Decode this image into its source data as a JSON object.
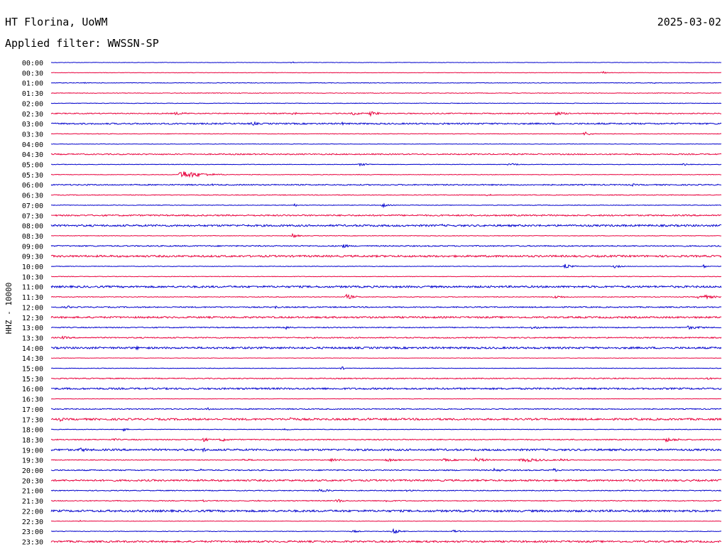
{
  "header": {
    "station": "HT Florina, UoWM",
    "date": "2025-03-02",
    "filter": "Applied filter: WWSSN-SP",
    "channel_label": "HHZ - 10000"
  },
  "colors": {
    "line_a": "#0000cc",
    "line_b": "#e8003c",
    "text": "#000000"
  },
  "chart_data": {
    "type": "line",
    "title": "",
    "xlabel": "",
    "ylabel": "HHZ - 10000",
    "x_range_minutes": [
      0,
      30
    ],
    "series": [
      {
        "label": "00:00",
        "noise": 0.3,
        "events": [
          {
            "t": 10.8,
            "a": 1.5,
            "d": 0.1
          }
        ]
      },
      {
        "label": "00:30",
        "noise": 0.3,
        "events": [
          {
            "t": 24.7,
            "a": 2.0,
            "d": 0.25
          },
          {
            "t": 26.0,
            "a": 1.0,
            "d": 0.05
          }
        ]
      },
      {
        "label": "01:00",
        "noise": 0.4,
        "events": [
          {
            "t": 1.5,
            "a": 1.5,
            "d": 0.05
          },
          {
            "t": 27.0,
            "a": 1.2,
            "d": 0.05
          }
        ]
      },
      {
        "label": "01:30",
        "noise": 0.4,
        "events": [
          {
            "t": 8.5,
            "a": 1.3,
            "d": 0.05
          },
          {
            "t": 10.3,
            "a": 1.3,
            "d": 0.05
          },
          {
            "t": 28.5,
            "a": 1.0,
            "d": 0.05
          }
        ]
      },
      {
        "label": "02:00",
        "noise": 0.4,
        "events": []
      },
      {
        "label": "02:30",
        "noise": 0.7,
        "events": [
          {
            "t": 5.5,
            "a": 2.0,
            "d": 1.5
          },
          {
            "t": 10.8,
            "a": 2.5,
            "d": 0.4
          },
          {
            "t": 12.0,
            "a": 2.0,
            "d": 0.3
          },
          {
            "t": 13.5,
            "a": 2.5,
            "d": 0.8
          },
          {
            "t": 14.3,
            "a": 3.5,
            "d": 0.6
          },
          {
            "t": 17.0,
            "a": 1.5,
            "d": 0.6
          },
          {
            "t": 22.5,
            "a": 2.5,
            "d": 1.2
          }
        ]
      },
      {
        "label": "03:00",
        "noise": 1.0,
        "events": [
          {
            "t": 9.0,
            "a": 3.5,
            "d": 0.4
          },
          {
            "t": 13.0,
            "a": 2.0,
            "d": 0.8
          },
          {
            "t": 17.5,
            "a": 1.5,
            "d": 0.8
          },
          {
            "t": 24.5,
            "a": 1.5,
            "d": 1.2
          }
        ]
      },
      {
        "label": "03:30",
        "noise": 0.4,
        "events": [
          {
            "t": 23.9,
            "a": 3.5,
            "d": 0.4
          }
        ]
      },
      {
        "label": "04:00",
        "noise": 0.3,
        "events": []
      },
      {
        "label": "04:30",
        "noise": 0.8,
        "events": []
      },
      {
        "label": "05:00",
        "noise": 0.4,
        "events": [
          {
            "t": 13.8,
            "a": 2.0,
            "d": 0.8
          },
          {
            "t": 20.5,
            "a": 2.0,
            "d": 0.8
          },
          {
            "t": 28.3,
            "a": 2.0,
            "d": 0.4
          }
        ]
      },
      {
        "label": "05:30",
        "noise": 0.4,
        "events": [
          {
            "t": 5.8,
            "a": 6.0,
            "d": 1.5
          }
        ]
      },
      {
        "label": "06:00",
        "noise": 0.8,
        "events": [
          {
            "t": 1.5,
            "a": 1.5,
            "d": 0.5
          },
          {
            "t": 7.2,
            "a": 1.5,
            "d": 0.5
          },
          {
            "t": 26.0,
            "a": 2.0,
            "d": 0.4
          }
        ]
      },
      {
        "label": "06:30",
        "noise": 0.5,
        "events": [
          {
            "t": 19.5,
            "a": 1.5,
            "d": 0.6
          }
        ]
      },
      {
        "label": "07:00",
        "noise": 0.4,
        "events": [
          {
            "t": 10.9,
            "a": 2.0,
            "d": 0.3
          },
          {
            "t": 14.8,
            "a": 3.5,
            "d": 0.4
          }
        ]
      },
      {
        "label": "07:30",
        "noise": 1.0,
        "events": []
      },
      {
        "label": "08:00",
        "noise": 1.3,
        "events": [
          {
            "t": 17.5,
            "a": 2.0,
            "d": 0.3
          }
        ]
      },
      {
        "label": "08:30",
        "noise": 0.4,
        "events": [
          {
            "t": 10.8,
            "a": 3.5,
            "d": 0.4
          }
        ]
      },
      {
        "label": "09:00",
        "noise": 0.8,
        "events": [
          {
            "t": 13.0,
            "a": 3.5,
            "d": 0.5
          }
        ]
      },
      {
        "label": "09:30",
        "noise": 1.3,
        "events": []
      },
      {
        "label": "10:00",
        "noise": 0.4,
        "events": [
          {
            "t": 23.0,
            "a": 3.5,
            "d": 0.5
          },
          {
            "t": 25.2,
            "a": 2.5,
            "d": 0.5
          },
          {
            "t": 29.2,
            "a": 2.5,
            "d": 0.3
          }
        ]
      },
      {
        "label": "10:30",
        "noise": 0.4,
        "events": []
      },
      {
        "label": "11:00",
        "noise": 1.3,
        "events": [
          {
            "t": 13.2,
            "a": 2.0,
            "d": 0.3
          }
        ]
      },
      {
        "label": "11:30",
        "noise": 0.5,
        "events": [
          {
            "t": 13.2,
            "a": 4.0,
            "d": 0.6
          },
          {
            "t": 22.5,
            "a": 2.5,
            "d": 0.9
          },
          {
            "t": 29.0,
            "a": 4.0,
            "d": 1.0
          }
        ]
      },
      {
        "label": "12:00",
        "noise": 0.8,
        "events": [
          {
            "t": 0.7,
            "a": 2.5,
            "d": 0.5
          },
          {
            "t": 10.0,
            "a": 2.5,
            "d": 0.4
          }
        ]
      },
      {
        "label": "12:30",
        "noise": 1.2,
        "events": []
      },
      {
        "label": "13:00",
        "noise": 0.7,
        "events": [
          {
            "t": 10.5,
            "a": 3.0,
            "d": 0.6
          },
          {
            "t": 21.5,
            "a": 2.0,
            "d": 1.4
          },
          {
            "t": 28.5,
            "a": 2.5,
            "d": 1.4
          }
        ]
      },
      {
        "label": "13:30",
        "noise": 0.8,
        "events": [
          {
            "t": 0.5,
            "a": 2.0,
            "d": 1.0
          },
          {
            "t": 18.5,
            "a": 1.5,
            "d": 0.8
          }
        ]
      },
      {
        "label": "14:00",
        "noise": 1.3,
        "events": [
          {
            "t": 3.8,
            "a": 2.5,
            "d": 0.6
          },
          {
            "t": 16.0,
            "a": 2.0,
            "d": 0.3
          }
        ]
      },
      {
        "label": "14:30",
        "noise": 0.3,
        "events": []
      },
      {
        "label": "15:00",
        "noise": 0.4,
        "events": [
          {
            "t": 13.0,
            "a": 2.5,
            "d": 0.3
          }
        ]
      },
      {
        "label": "15:30",
        "noise": 0.7,
        "events": [
          {
            "t": 24.5,
            "a": 2.0,
            "d": 0.5
          },
          {
            "t": 29.3,
            "a": 2.0,
            "d": 0.6
          }
        ]
      },
      {
        "label": "16:00",
        "noise": 1.2,
        "events": []
      },
      {
        "label": "16:30",
        "noise": 0.3,
        "events": []
      },
      {
        "label": "17:00",
        "noise": 0.7,
        "events": [
          {
            "t": 7.0,
            "a": 2.0,
            "d": 0.5
          },
          {
            "t": 23.5,
            "a": 1.5,
            "d": 0.5
          }
        ]
      },
      {
        "label": "17:30",
        "noise": 1.3,
        "events": [
          {
            "t": 0.4,
            "a": 3.0,
            "d": 0.4
          },
          {
            "t": 10.7,
            "a": 3.5,
            "d": 0.6
          },
          {
            "t": 14.2,
            "a": 2.0,
            "d": 0.3
          }
        ]
      },
      {
        "label": "18:00",
        "noise": 0.4,
        "events": [
          {
            "t": 3.2,
            "a": 3.0,
            "d": 0.3
          },
          {
            "t": 10.5,
            "a": 2.5,
            "d": 0.3
          }
        ]
      },
      {
        "label": "18:30",
        "noise": 0.7,
        "events": [
          {
            "t": 2.8,
            "a": 2.0,
            "d": 0.5
          },
          {
            "t": 6.8,
            "a": 3.0,
            "d": 0.5
          },
          {
            "t": 7.6,
            "a": 3.0,
            "d": 0.6
          },
          {
            "t": 27.5,
            "a": 3.0,
            "d": 1.2
          }
        ]
      },
      {
        "label": "19:00",
        "noise": 1.3,
        "events": [
          {
            "t": 1.3,
            "a": 3.0,
            "d": 1.0
          },
          {
            "t": 5.5,
            "a": 2.0,
            "d": 0.5
          },
          {
            "t": 6.8,
            "a": 3.5,
            "d": 0.3
          }
        ]
      },
      {
        "label": "19:30",
        "noise": 0.5,
        "events": [
          {
            "t": 8.5,
            "a": 1.5,
            "d": 2.0
          },
          {
            "t": 12.5,
            "a": 2.5,
            "d": 1.0
          },
          {
            "t": 15.0,
            "a": 2.5,
            "d": 1.0
          },
          {
            "t": 17.5,
            "a": 2.0,
            "d": 1.5
          },
          {
            "t": 19.0,
            "a": 3.0,
            "d": 1.0
          },
          {
            "t": 21.0,
            "a": 3.0,
            "d": 2.0
          },
          {
            "t": 22.8,
            "a": 2.0,
            "d": 0.8
          }
        ]
      },
      {
        "label": "20:00",
        "noise": 0.8,
        "events": [
          {
            "t": 6.7,
            "a": 2.0,
            "d": 0.3
          },
          {
            "t": 19.8,
            "a": 2.5,
            "d": 1.0
          },
          {
            "t": 22.5,
            "a": 2.5,
            "d": 0.4
          }
        ]
      },
      {
        "label": "20:30",
        "noise": 1.2,
        "events": []
      },
      {
        "label": "21:00",
        "noise": 0.6,
        "events": [
          {
            "t": 12.0,
            "a": 2.5,
            "d": 1.0
          },
          {
            "t": 16.0,
            "a": 2.5,
            "d": 0.3
          }
        ]
      },
      {
        "label": "21:30",
        "noise": 0.6,
        "events": [
          {
            "t": 6.8,
            "a": 1.5,
            "d": 0.4
          },
          {
            "t": 9.2,
            "a": 1.5,
            "d": 0.3
          },
          {
            "t": 12.8,
            "a": 3.0,
            "d": 0.5
          },
          {
            "t": 15.0,
            "a": 2.5,
            "d": 0.5
          }
        ]
      },
      {
        "label": "22:00",
        "noise": 1.4,
        "events": []
      },
      {
        "label": "22:30",
        "noise": 0.3,
        "events": [
          {
            "t": 1.3,
            "a": 1.5,
            "d": 0.3
          }
        ]
      },
      {
        "label": "23:00",
        "noise": 0.4,
        "events": [
          {
            "t": 13.5,
            "a": 2.0,
            "d": 0.5
          },
          {
            "t": 15.3,
            "a": 4.0,
            "d": 0.5
          },
          {
            "t": 18.0,
            "a": 2.0,
            "d": 0.6
          }
        ]
      },
      {
        "label": "23:30",
        "noise": 1.2,
        "events": []
      }
    ]
  }
}
